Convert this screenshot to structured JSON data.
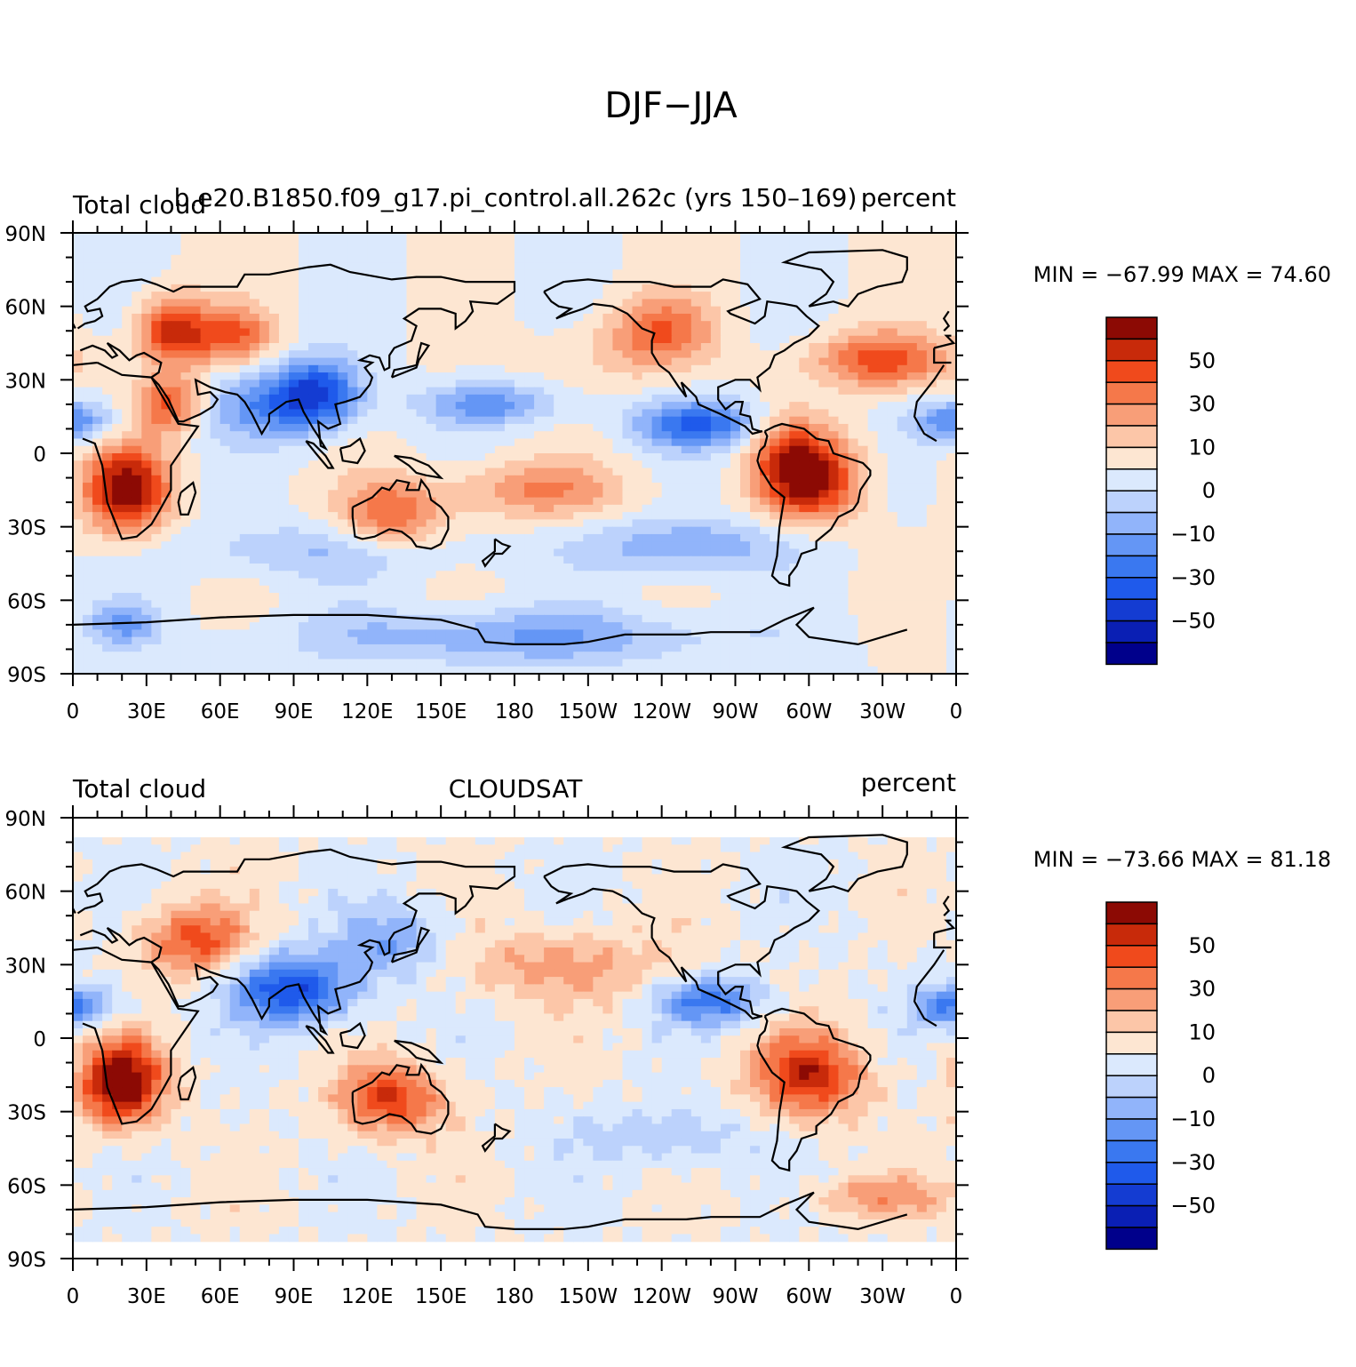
{
  "figure": {
    "title": "DJF−JJA"
  },
  "colors": {
    "levels": [
      "#00008b",
      "#0a1fb4",
      "#143cd2",
      "#1f5aeb",
      "#3a78f0",
      "#6496f5",
      "#91b4fa",
      "#bcd2fc",
      "#dbe9fd",
      "#fde6d2",
      "#fcc6a8",
      "#f89e78",
      "#f5784a",
      "#f04a1c",
      "#c82a0a",
      "#8c0a04"
    ]
  },
  "chart_data": [
    {
      "type": "heatmap",
      "title": "Total cloud",
      "center_title": "b.e20.B1850.f09_g17.pi_control.all.262c (yrs 150–169)",
      "units": "percent",
      "x_ticks": [
        "0",
        "30E",
        "60E",
        "90E",
        "120E",
        "150E",
        "180",
        "150W",
        "120W",
        "90W",
        "60W",
        "30W",
        "0"
      ],
      "y_ticks": [
        "90N",
        "60N",
        "30N",
        "0",
        "30S",
        "60S",
        "90S"
      ],
      "xlim": [
        0,
        360
      ],
      "ylim": [
        -90,
        90
      ],
      "stats": "MIN = −67.99  MAX =   74.60",
      "min": -67.99,
      "max": 74.6,
      "colorbar_labels": [
        "50",
        "30",
        "10",
        "0",
        "−10",
        "−30",
        "−50"
      ],
      "data_lat_range": [
        -90,
        90
      ]
    },
    {
      "type": "heatmap",
      "title": "Total cloud",
      "center_title": "CLOUDSAT",
      "units": "percent",
      "x_ticks": [
        "0",
        "30E",
        "60E",
        "90E",
        "120E",
        "150E",
        "180",
        "150W",
        "120W",
        "90W",
        "60W",
        "30W",
        "0"
      ],
      "y_ticks": [
        "90N",
        "60N",
        "30N",
        "0",
        "30S",
        "60S",
        "90S"
      ],
      "xlim": [
        0,
        360
      ],
      "ylim": [
        -90,
        90
      ],
      "stats": "MIN = −73.66  MAX =   81.18",
      "min": -73.66,
      "max": 81.18,
      "colorbar_labels": [
        "50",
        "30",
        "10",
        "0",
        "−10",
        "−30",
        "−50"
      ],
      "data_lat_range": [
        -82,
        82
      ]
    }
  ]
}
